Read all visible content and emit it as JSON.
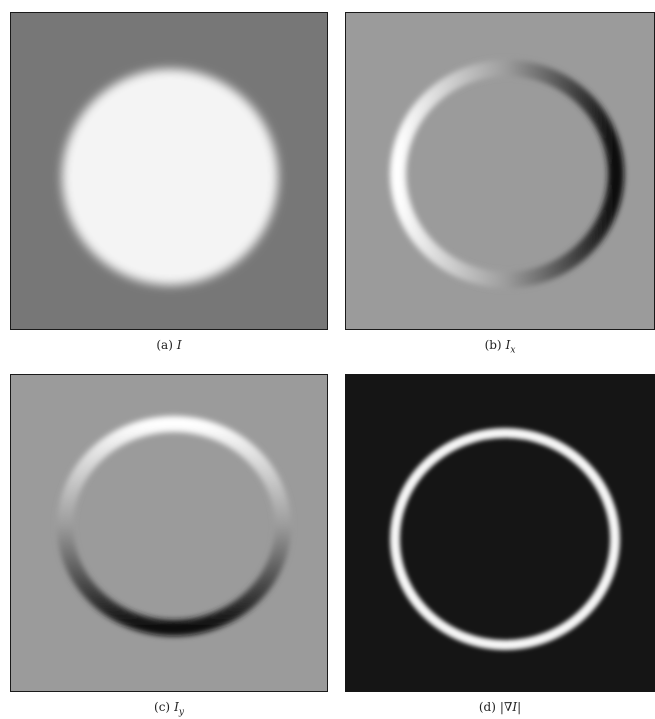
{
  "figure": {
    "panels": [
      {
        "id": "a",
        "tag": "(a)",
        "symbol": "I",
        "subscript": ""
      },
      {
        "id": "b",
        "tag": "(b)",
        "symbol": "I",
        "subscript": "x"
      },
      {
        "id": "c",
        "tag": "(c)",
        "symbol": "I",
        "subscript": "y"
      },
      {
        "id": "d",
        "tag": "(d)",
        "symbol": "|∇I|",
        "subscript": ""
      }
    ]
  },
  "colors": {
    "a_background": "#777777",
    "a_disc": "#f4f4f4",
    "derivative_background": "#9b9b9b",
    "gradient_background": "#151515",
    "edge_bright": "#ffffff",
    "edge_dark": "#0d0d0d"
  }
}
